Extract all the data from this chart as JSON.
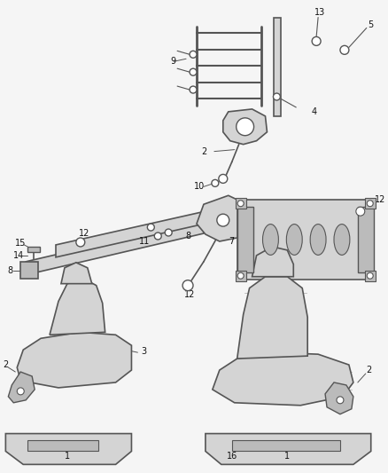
{
  "background_color": "#f5f5f5",
  "line_color": "#555555",
  "fill_light": "#d4d4d4",
  "fill_mid": "#bbbbbb",
  "fill_dark": "#999999",
  "label_fs": 7,
  "figsize": [
    4.38,
    5.33
  ],
  "dpi": 100
}
